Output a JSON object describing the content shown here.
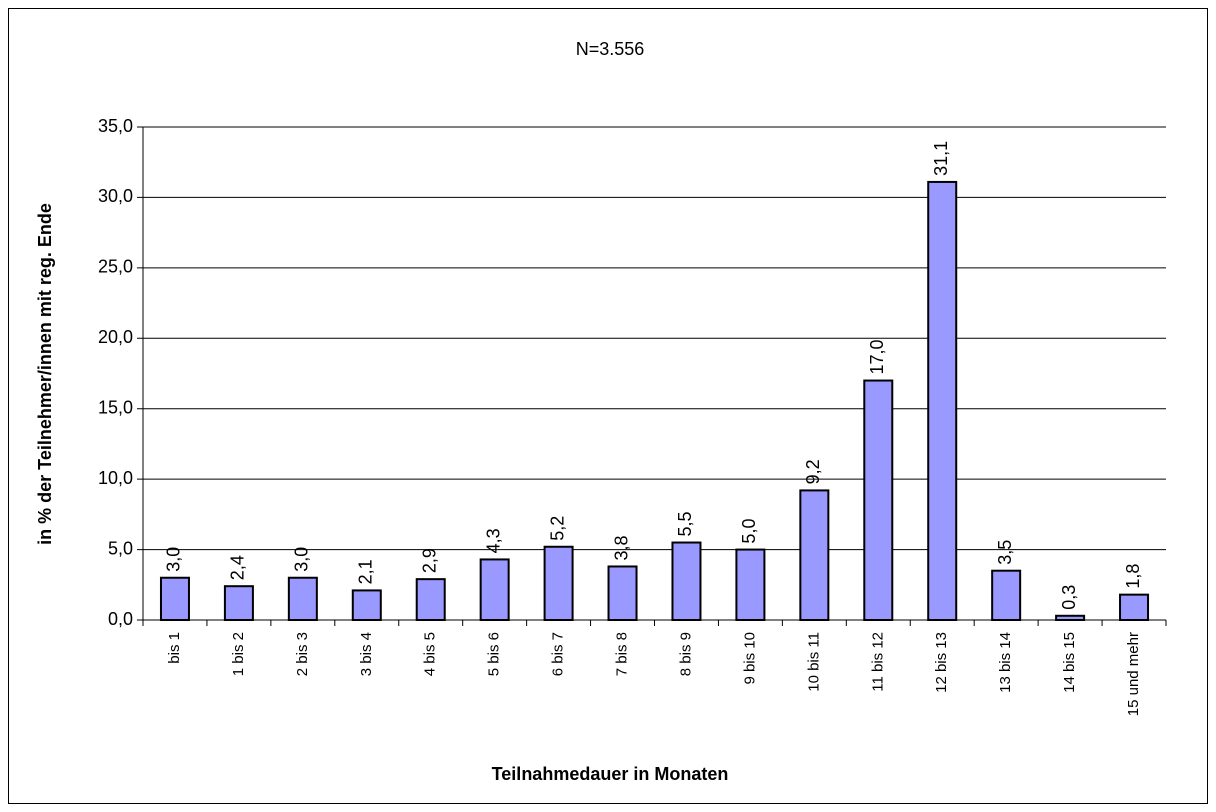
{
  "chart_data": {
    "type": "bar",
    "title": "N=3.556",
    "y_label": "in % der Teilnehmer/innen mit reg. Ende",
    "x_label": "Teilnahmedauer in Monaten",
    "categories": [
      "bis 1",
      "1 bis 2",
      "2 bis 3",
      "3 bis 4",
      "4 bis 5",
      "5 bis 6",
      "6 bis 7",
      "7 bis 8",
      "8 bis 9",
      "9 bis 10",
      "10 bis 11",
      "11 bis 12",
      "12 bis 13",
      "13 bis 14",
      "14 bis 15",
      "15 und mehr"
    ],
    "values": [
      3.0,
      2.4,
      3.0,
      2.1,
      2.9,
      4.3,
      5.2,
      3.8,
      5.5,
      5.0,
      9.2,
      17.0,
      31.1,
      3.5,
      0.3,
      1.8
    ],
    "value_labels": [
      "3,0",
      "2,4",
      "3,0",
      "2,1",
      "2,9",
      "4,3",
      "5,2",
      "3,8",
      "5,5",
      "5,0",
      "9,2",
      "17,0",
      "31,1",
      "3,5",
      "0,3",
      "1,8"
    ],
    "color": "#9999ff",
    "ylim": [
      0,
      35
    ],
    "yticks": [
      {
        "value": 0,
        "label": "0,0"
      },
      {
        "value": 5,
        "label": "5,0"
      },
      {
        "value": 10,
        "label": "10,0"
      },
      {
        "value": 15,
        "label": "15,0"
      },
      {
        "value": 20,
        "label": "20,0"
      },
      {
        "value": 25,
        "label": "25,0"
      },
      {
        "value": 30,
        "label": "30,0"
      },
      {
        "value": 35,
        "label": "35,0"
      }
    ],
    "grid": true
  }
}
